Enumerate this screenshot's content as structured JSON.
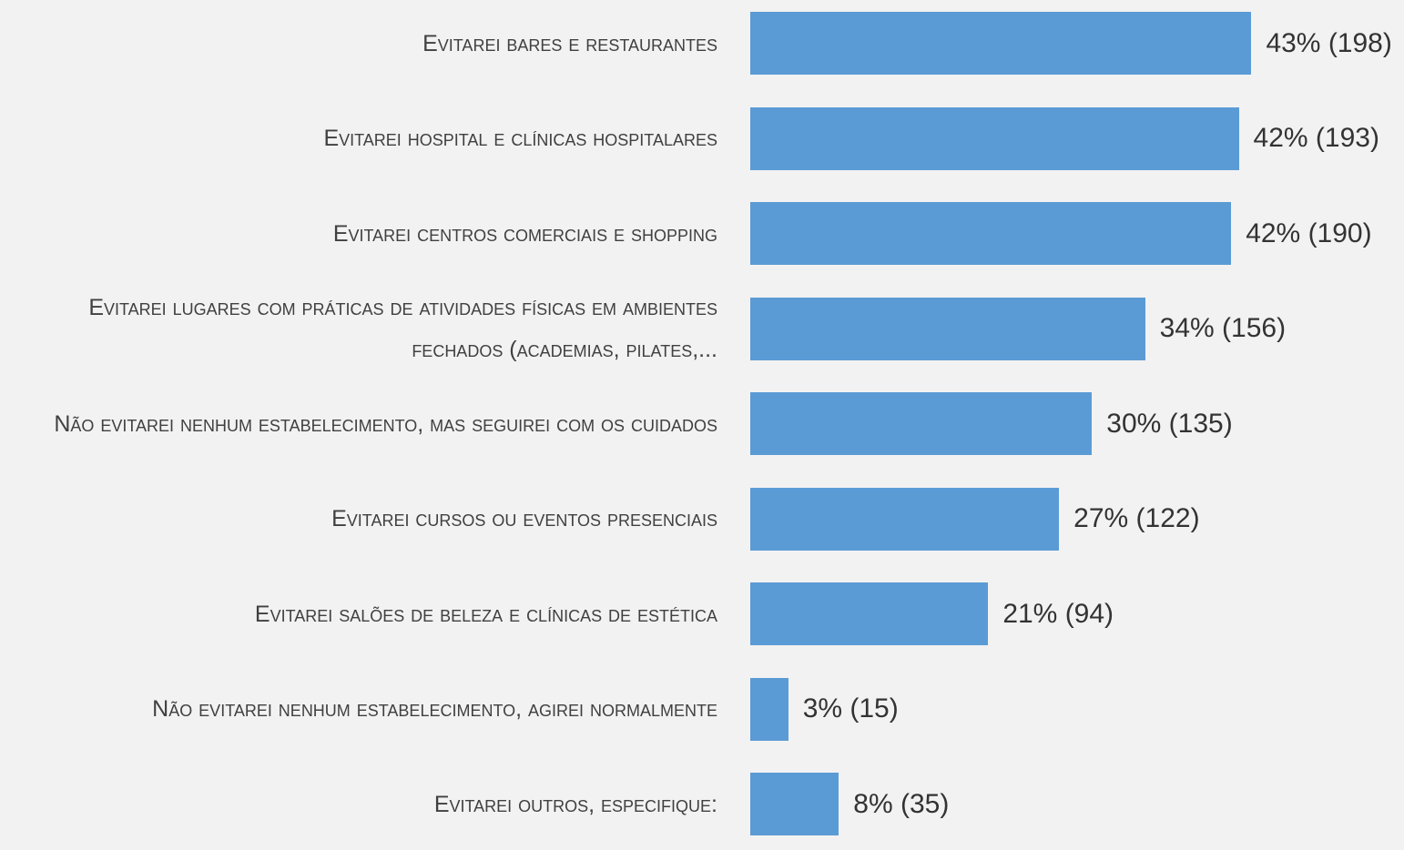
{
  "chart_data": {
    "type": "hbar",
    "categories": [
      "Evitarei bares e restaurantes",
      "Evitarei hospital e clínicas hospitalares",
      "Evitarei centros comerciais e shopping",
      "Evitarei lugares com práticas de atividades físicas em ambientes fechados (academias, pilates,...",
      "Não evitarei nenhum estabelecimento, mas seguirei com os cuidados",
      "Evitarei cursos ou eventos presenciais",
      "Evitarei salões de beleza e clínicas de estética",
      "Não evitarei nenhum estabelecimento, agirei normalmente",
      "Evitarei outros, especifique:"
    ],
    "values": [
      198,
      193,
      190,
      156,
      135,
      122,
      94,
      15,
      35
    ],
    "value_labels": [
      "43% (198)",
      "42% (193)",
      "42% (190)",
      "34% (156)",
      "30% (135)",
      "27% (122)",
      "21% (94)",
      "3% (15)",
      "8% (35)"
    ],
    "color": "#5b9bd5",
    "xlim": [
      0,
      250
    ]
  }
}
